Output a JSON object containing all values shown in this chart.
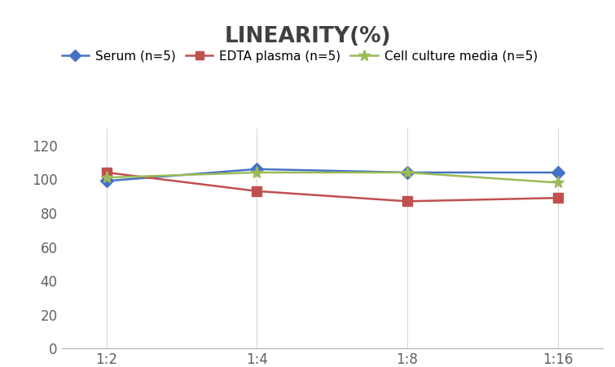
{
  "title": "LINEARITY(%)",
  "x_labels": [
    "1:2",
    "1:4",
    "1:8",
    "1:16"
  ],
  "x_positions": [
    0,
    1,
    2,
    3
  ],
  "series": [
    {
      "name": "Serum (n=5)",
      "values": [
        99,
        106,
        104,
        104
      ],
      "color": "#4472C4",
      "marker": "D"
    },
    {
      "name": "EDTA plasma (n=5)",
      "values": [
        104,
        93,
        87,
        89
      ],
      "color": "#C0504D",
      "marker": "s"
    },
    {
      "name": "Cell culture media (n=5)",
      "values": [
        101,
        104,
        104,
        98
      ],
      "color": "#9BBB59",
      "marker": "*"
    }
  ],
  "ylim": [
    0,
    130
  ],
  "yticks": [
    0,
    20,
    40,
    60,
    80,
    100,
    120
  ],
  "title_fontsize": 19,
  "title_color": "#404040",
  "legend_fontsize": 11,
  "tick_fontsize": 12,
  "tick_color": "#606060",
  "background_color": "#ffffff",
  "grid_color": "#d8d8d8"
}
